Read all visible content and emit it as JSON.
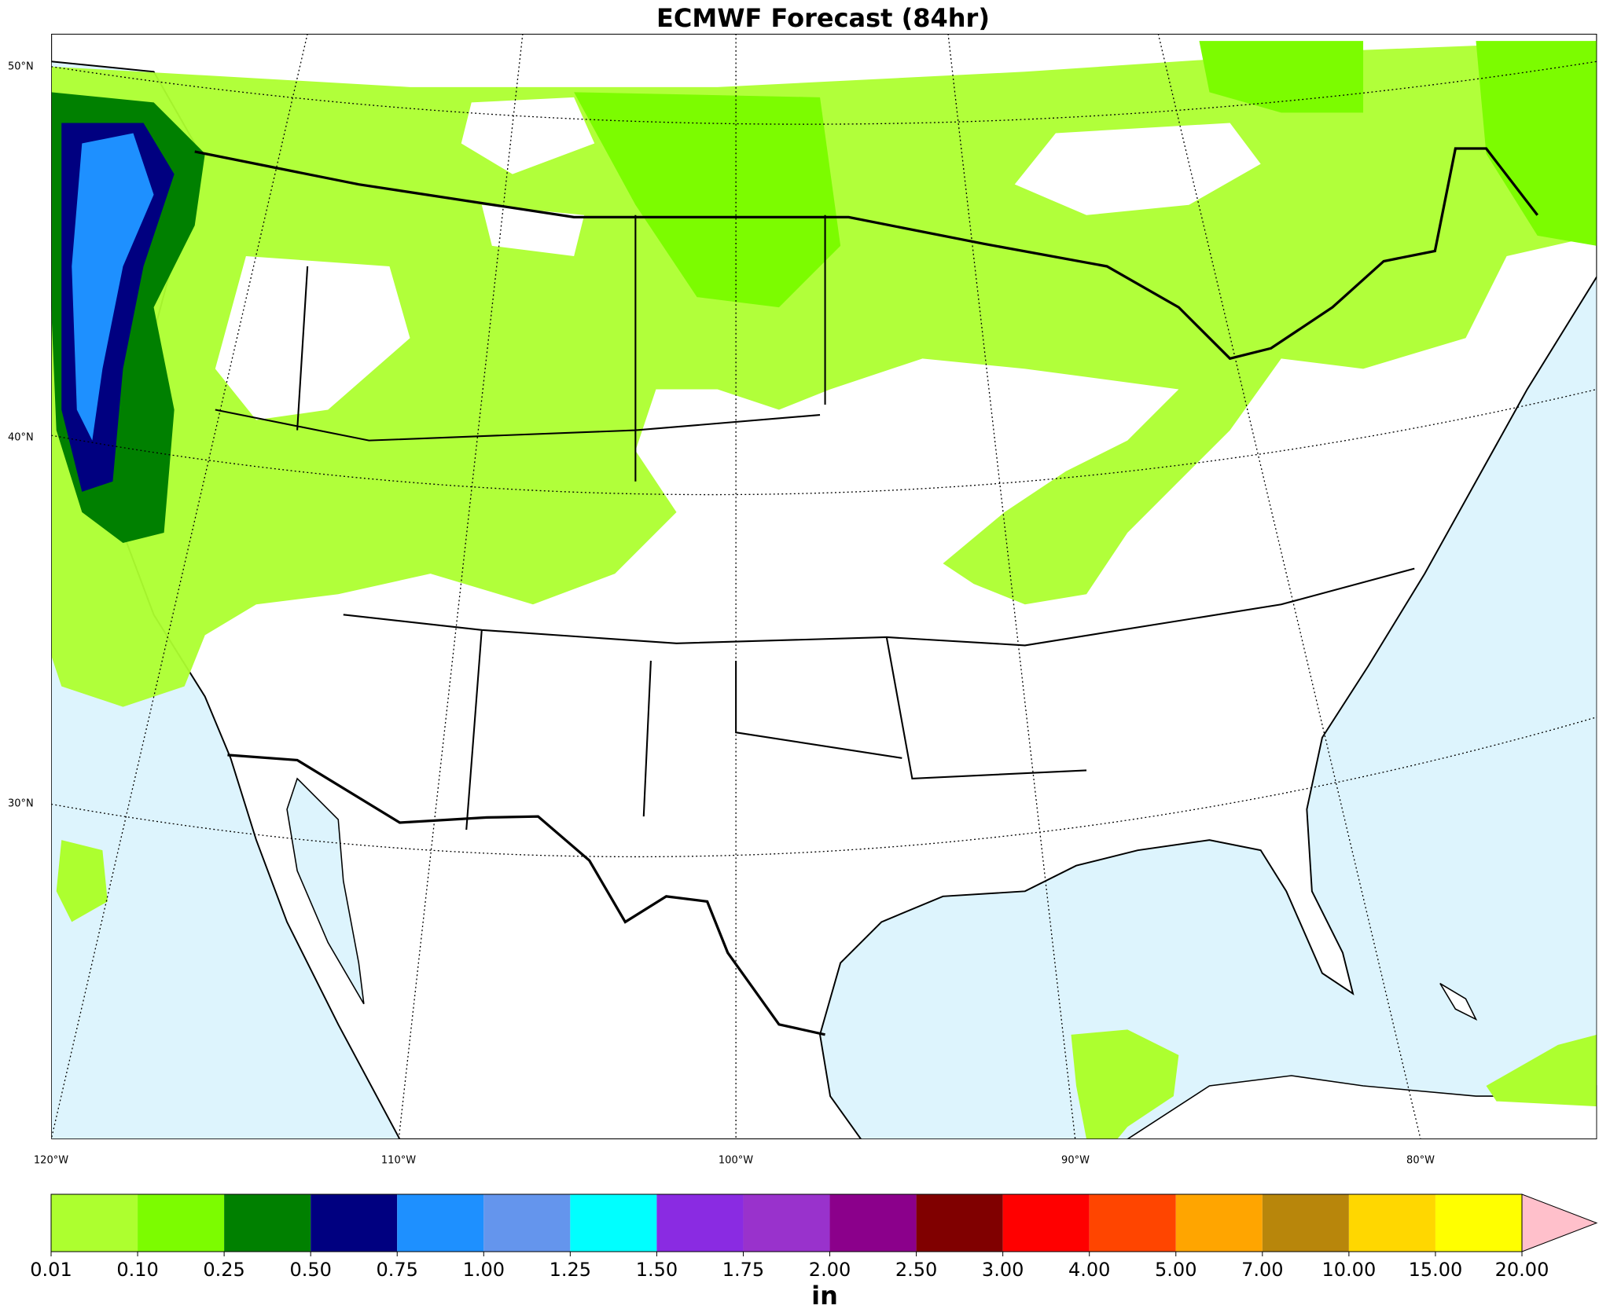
{
  "title": "ECMWF Forecast (84hr)",
  "map": {
    "lat_labels": [
      "50°N",
      "40°N",
      "30°N"
    ],
    "lon_labels": [
      "120°W",
      "110°W",
      "100°W",
      "90°W",
      "80°W"
    ]
  },
  "colorbar": {
    "ticks": [
      {
        "value": 0.01,
        "label": "0.01"
      },
      {
        "value": 0.1,
        "label": "0.10"
      },
      {
        "value": 0.25,
        "label": "0.25"
      },
      {
        "value": 0.5,
        "label": "0.50"
      },
      {
        "value": 0.75,
        "label": "0.75"
      },
      {
        "value": 1,
        "label": "1.00"
      },
      {
        "value": 1.25,
        "label": "1.25"
      },
      {
        "value": 1.5,
        "label": "1.50"
      },
      {
        "value": 1.75,
        "label": "1.75"
      },
      {
        "value": 2,
        "label": "2.00"
      },
      {
        "value": 2.5,
        "label": "2.50"
      },
      {
        "value": 3,
        "label": "3.00"
      },
      {
        "value": 4,
        "label": "4.00"
      },
      {
        "value": 5,
        "label": "5.00"
      },
      {
        "value": 7,
        "label": "7.00"
      },
      {
        "value": 10,
        "label": "10.00"
      },
      {
        "value": 15,
        "label": "15.00"
      },
      {
        "value": 20,
        "label": "20.00"
      }
    ],
    "colors": [
      "#adff2f",
      "#7cfc00",
      "#008000",
      "#000080",
      "#1e90ff",
      "#6495ed",
      "#00ffff",
      "#8a2be2",
      "#9932cc",
      "#8b008b",
      "#800000",
      "#ff0000",
      "#ff4500",
      "#ffa500",
      "#b8860b",
      "#ffd700",
      "#ffff00"
    ],
    "over_color": "#ffc0cb",
    "unit": "in"
  }
}
